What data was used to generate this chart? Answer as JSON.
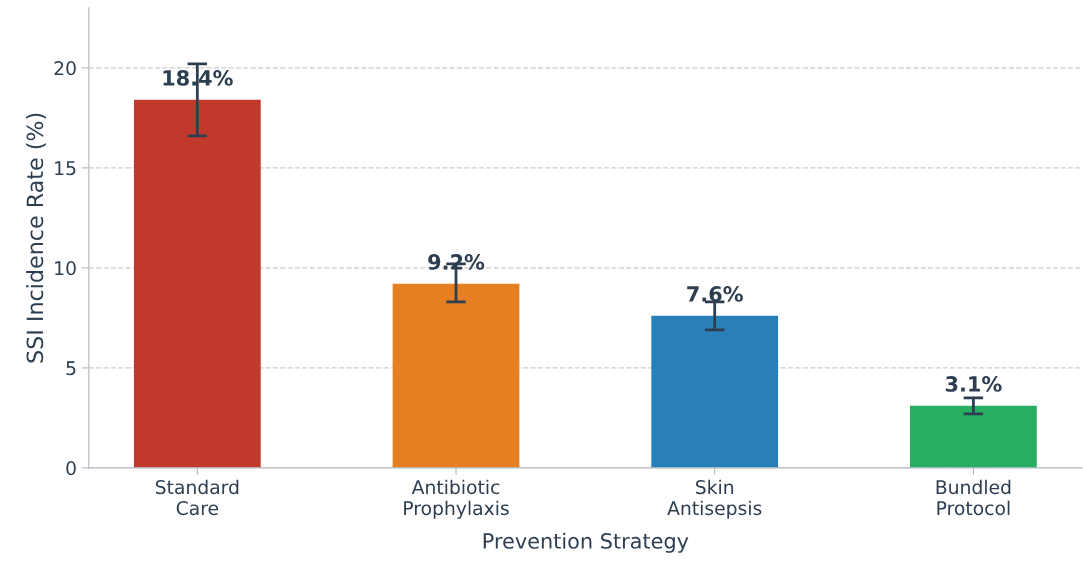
{
  "chart_data": {
    "type": "bar",
    "xlabel": "Prevention Strategy",
    "ylabel": "SSI Incidence Rate (%)",
    "categories": [
      "Standard\nCare",
      "Antibiotic\nProphylaxis",
      "Skin\nAntisepsis",
      "Bundled\nProtocol"
    ],
    "values": [
      18.4,
      9.2,
      7.6,
      3.1
    ],
    "colors": [
      "#c0392b",
      "#e67e22",
      "#2980b9",
      "#27ae60"
    ],
    "errors": [
      [
        16.6,
        20.2
      ],
      [
        8.3,
        10.2
      ],
      [
        6.9,
        8.3
      ],
      [
        2.7,
        3.5
      ]
    ],
    "value_labels": [
      "18.4%",
      "9.2%",
      "7.6%",
      "3.1%"
    ],
    "ylim": [
      0,
      23
    ],
    "yticks": [
      0,
      5,
      10,
      15,
      20
    ],
    "grid": "y",
    "legend": false
  }
}
